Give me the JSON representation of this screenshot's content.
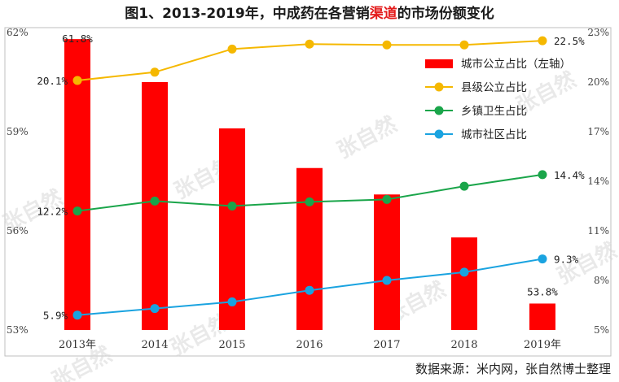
{
  "title": {
    "before": "图1、2013-2019年，中成药在各营销",
    "highlight": "渠道",
    "after": "的市场份额变化"
  },
  "source": "数据来源：米内网，张自然博士整理",
  "watermark": "张自然",
  "colors": {
    "bar": "#ff0000",
    "county": "#f5b800",
    "town": "#1aa54a",
    "community": "#1aa3e0",
    "frame": "#bfbfbf"
  },
  "chart_data": {
    "type": "bar",
    "categories": [
      "2013年",
      "2014",
      "2015",
      "2016",
      "2017",
      "2018",
      "2019年"
    ],
    "left_axis": {
      "min": 53,
      "max": 62,
      "ticks": [
        "53%",
        "56%",
        "59%",
        "62%"
      ],
      "tick_values": [
        53,
        56,
        59,
        62
      ]
    },
    "right_axis": {
      "min": 5,
      "max": 23,
      "ticks": [
        "5%",
        "8%",
        "11%",
        "14%",
        "17%",
        "20%",
        "23%"
      ],
      "tick_values": [
        5,
        8,
        11,
        14,
        17,
        20,
        23
      ]
    },
    "series": [
      {
        "name": "城市公立占比（左轴）",
        "type": "bar",
        "axis": "left",
        "values": [
          61.8,
          60.5,
          59.1,
          57.9,
          57.1,
          55.8,
          53.8
        ],
        "labels": [
          "61.8%",
          "",
          "",
          "",
          "",
          "",
          "53.8%"
        ]
      },
      {
        "name": "县级公立占比",
        "type": "line",
        "axis": "right",
        "values": [
          20.1,
          20.6,
          22.0,
          22.3,
          22.25,
          22.25,
          22.5
        ],
        "labels": [
          "20.1%",
          "",
          "",
          "",
          "",
          "",
          "22.5%"
        ]
      },
      {
        "name": "乡镇卫生占比",
        "type": "line",
        "axis": "right",
        "values": [
          12.2,
          12.8,
          12.5,
          12.75,
          12.9,
          13.7,
          14.4
        ],
        "labels": [
          "12.2%",
          "",
          "",
          "",
          "",
          "",
          "14.4%"
        ]
      },
      {
        "name": "城市社区占比",
        "type": "line",
        "axis": "right",
        "values": [
          5.9,
          6.3,
          6.7,
          7.4,
          8.0,
          8.5,
          9.3
        ],
        "labels": [
          "5.9%",
          "",
          "",
          "",
          "",
          "",
          "9.3%"
        ]
      }
    ],
    "legend_position": "top-right",
    "grid": false
  }
}
